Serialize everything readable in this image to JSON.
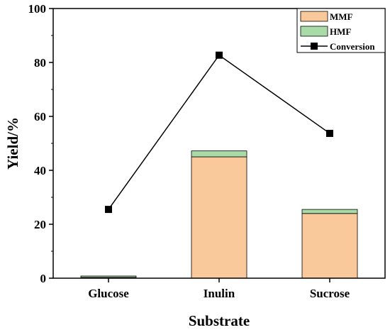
{
  "chart_data": {
    "type": "bar",
    "stacked": true,
    "categories": [
      "Glucose",
      "Inulin",
      "Sucrose"
    ],
    "series": [
      {
        "name": "MMF",
        "kind": "bar",
        "values": [
          0.3,
          45.0,
          24.0
        ],
        "color": "#f9c89b"
      },
      {
        "name": "HMF",
        "kind": "bar",
        "values": [
          0.5,
          2.2,
          1.5
        ],
        "color": "#a8dba8"
      },
      {
        "name": "Conversion",
        "kind": "line",
        "values": [
          25.5,
          82.7,
          53.7
        ],
        "color": "#000000"
      }
    ],
    "xlabel": "Substrate",
    "ylabel": "Yield/%",
    "ylim": [
      0,
      100
    ],
    "yticks": [
      0,
      20,
      40,
      60,
      80,
      100
    ],
    "grid": false,
    "legend_position": "top-right"
  }
}
